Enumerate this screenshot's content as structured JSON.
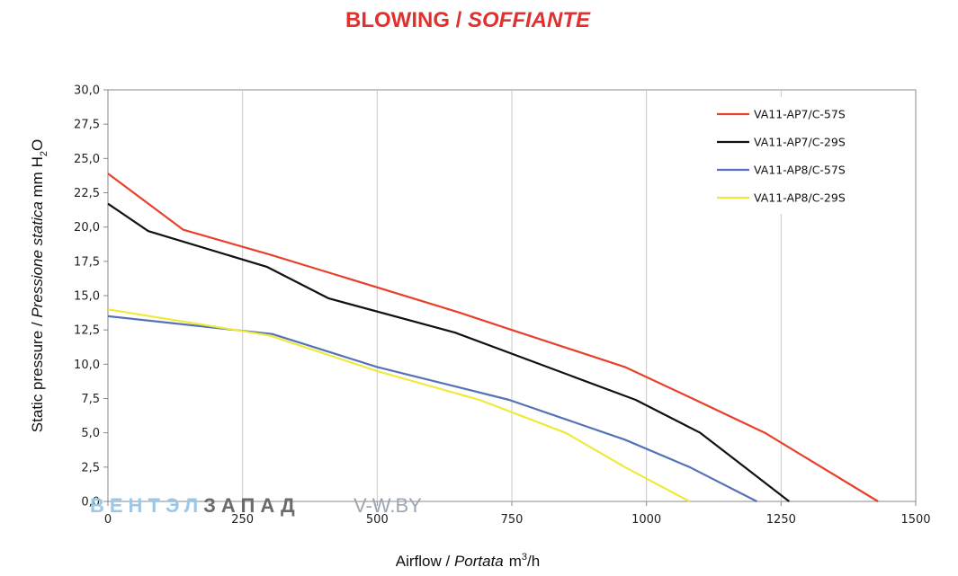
{
  "chart_data": {
    "type": "line",
    "title": {
      "main": "BLOWING / ",
      "italic": "SOFFIANTE",
      "color": "#e03030"
    },
    "xlabel": {
      "plain": "Airflow / ",
      "italic": "Portata",
      "unit_base": "m",
      "unit_sup": "3",
      "unit_tail": "/h"
    },
    "ylabel": {
      "plain": "Static pressure / ",
      "italic": "Pressione statica",
      "unit_base": " mm H",
      "unit_sub": "2",
      "unit_tail": "O"
    },
    "xlim": [
      0,
      1500
    ],
    "ylim": [
      0,
      30
    ],
    "x_ticks": [
      "0",
      "250",
      "500",
      "750",
      "1000",
      "1250",
      "1500"
    ],
    "x_tick_values": [
      0,
      250,
      500,
      750,
      1000,
      1250,
      1500
    ],
    "y_ticks": [
      "0,0",
      "2,5",
      "5,0",
      "7,5",
      "10,0",
      "12,5",
      "15,0",
      "17,5",
      "20,0",
      "22,5",
      "25,0",
      "27,5",
      "30,0"
    ],
    "y_tick_values": [
      0,
      2.5,
      5,
      7.5,
      10,
      12.5,
      15,
      17.5,
      20,
      22.5,
      25,
      27.5,
      30
    ],
    "grid": "vertical",
    "legend_position": "top-right",
    "series": [
      {
        "name": "VA11-AP7/C-57S",
        "color": "#e8402a",
        "points": [
          [
            0,
            23.9
          ],
          [
            140,
            19.8
          ],
          [
            300,
            18.0
          ],
          [
            400,
            16.8
          ],
          [
            650,
            13.8
          ],
          [
            750,
            12.5
          ],
          [
            960,
            9.8
          ],
          [
            1080,
            7.6
          ],
          [
            1220,
            5.0
          ],
          [
            1430,
            0.0
          ]
        ]
      },
      {
        "name": "VA11-AP7/C-29S",
        "color": "#111111",
        "points": [
          [
            0,
            21.7
          ],
          [
            75,
            19.7
          ],
          [
            295,
            17.1
          ],
          [
            410,
            14.8
          ],
          [
            645,
            12.3
          ],
          [
            980,
            7.4
          ],
          [
            1100,
            5.0
          ],
          [
            1265,
            0.0
          ]
        ]
      },
      {
        "name": "VA11-AP8/C-57S",
        "color": "#5572b8",
        "points": [
          [
            0,
            13.5
          ],
          [
            305,
            12.2
          ],
          [
            500,
            9.8
          ],
          [
            745,
            7.4
          ],
          [
            960,
            4.5
          ],
          [
            1080,
            2.5
          ],
          [
            1205,
            0.0
          ]
        ]
      },
      {
        "name": "VA11-AP8/C-29S",
        "color": "#eeea3a",
        "points": [
          [
            0,
            14.0
          ],
          [
            300,
            12.1
          ],
          [
            500,
            9.5
          ],
          [
            690,
            7.4
          ],
          [
            850,
            5.0
          ],
          [
            960,
            2.5
          ],
          [
            1080,
            0.0
          ]
        ]
      }
    ]
  },
  "watermark": {
    "part1": "ВЕНТЭЛ",
    "part2": "ЗАПАД",
    "part3": "V-W.BY",
    "color1": "#9cc8e8",
    "color2": "#6b6b6b"
  }
}
